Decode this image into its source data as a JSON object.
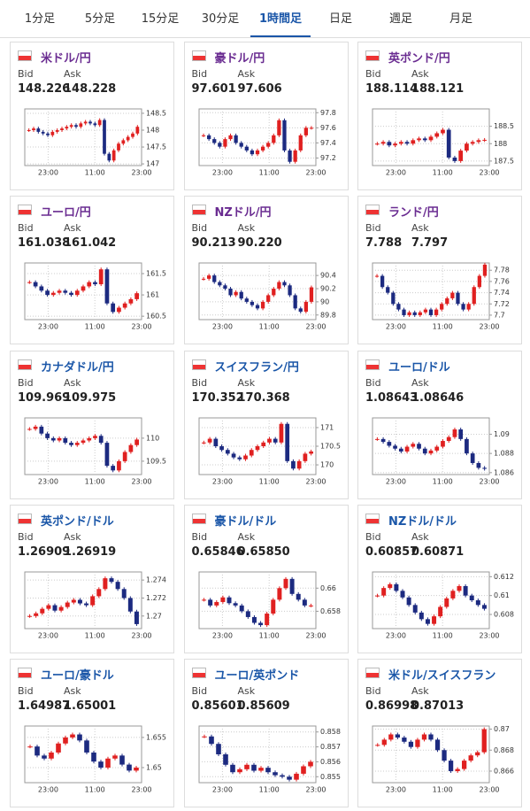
{
  "tabs": [
    "1分足",
    "5分足",
    "15分足",
    "30分足",
    "1時間足",
    "日足",
    "週足",
    "月足"
  ],
  "active_tab": 4,
  "labels": {
    "bid": "Bid",
    "ask": "Ask"
  },
  "cards": [
    {
      "name": "米ドル/円",
      "bid": "148.226",
      "ask": "148.228",
      "chart": {
        "type": "candlestick",
        "xticks": [
          "23:00",
          "11:00",
          "23:00"
        ],
        "ylim": [
          146.95,
          148.63
        ],
        "yticks": [
          148.5,
          148,
          147.5,
          147
        ],
        "closes": [
          148.0,
          148.05,
          147.95,
          147.9,
          147.85,
          147.95,
          148.0,
          148.05,
          148.1,
          148.15,
          148.1,
          148.2,
          148.25,
          148.2,
          148.15,
          148.3,
          147.3,
          147.1,
          147.4,
          147.6,
          147.7,
          147.8,
          147.9,
          148.1
        ]
      }
    },
    {
      "name": "豪ドル/円",
      "bid": "97.601",
      "ask": "97.606",
      "chart": {
        "type": "candlestick",
        "xticks": [
          "23:00",
          "11:00",
          "23:00"
        ],
        "ylim": [
          97.1,
          97.85
        ],
        "yticks": [
          97.8,
          97.6,
          97.4,
          97.2
        ],
        "closes": [
          97.5,
          97.45,
          97.4,
          97.35,
          97.45,
          97.5,
          97.4,
          97.35,
          97.3,
          97.25,
          97.3,
          97.35,
          97.4,
          97.5,
          97.7,
          97.3,
          97.15,
          97.3,
          97.5,
          97.6,
          97.6
        ]
      }
    },
    {
      "name": "英ポンド/円",
      "bid": "188.114",
      "ask": "188.121",
      "chart": {
        "type": "candlestick",
        "xticks": [
          "23:00",
          "11:00",
          "23:00"
        ],
        "ylim": [
          187.37,
          189.0
        ],
        "yticks": [
          188.5,
          188,
          187.5
        ],
        "closes": [
          188.0,
          188.05,
          187.95,
          188.0,
          188.05,
          188.0,
          188.1,
          188.15,
          188.1,
          188.2,
          188.3,
          188.4,
          187.6,
          187.5,
          187.8,
          188.0,
          188.05,
          188.1,
          188.11
        ]
      }
    },
    {
      "name": "ユーロ/円",
      "bid": "161.038",
      "ask": "161.042",
      "chart": {
        "type": "candlestick",
        "xticks": [
          "23:00",
          "11:00",
          "23:00"
        ],
        "ylim": [
          160.42,
          161.75
        ],
        "yticks": [
          161.5,
          161,
          160.5
        ],
        "closes": [
          161.3,
          161.2,
          161.1,
          161.0,
          161.05,
          161.1,
          161.05,
          161.0,
          161.1,
          161.2,
          161.3,
          161.25,
          161.6,
          160.8,
          160.6,
          160.7,
          160.8,
          160.9,
          161.04
        ]
      }
    },
    {
      "name": "NZドル/円",
      "bid": "90.213",
      "ask": "90.220",
      "chart": {
        "type": "candlestick",
        "xticks": [
          "23:00",
          "11:00",
          "23:00"
        ],
        "ylim": [
          89.73,
          90.59
        ],
        "yticks": [
          90.4,
          90.2,
          90,
          89.8
        ],
        "closes": [
          90.35,
          90.4,
          90.3,
          90.25,
          90.2,
          90.1,
          90.15,
          90.05,
          90.0,
          89.95,
          89.9,
          90.0,
          90.1,
          90.2,
          90.3,
          90.25,
          90.1,
          89.9,
          89.85,
          90.0,
          90.22
        ]
      }
    },
    {
      "name": "ランド/円",
      "bid": "7.788",
      "ask": "7.797",
      "chart": {
        "type": "candlestick",
        "xticks": [
          "23:00",
          "11:00",
          "23:00"
        ],
        "ylim": [
          7.692,
          7.793
        ],
        "yticks": [
          7.78,
          7.76,
          7.74,
          7.72,
          7.7
        ],
        "closes": [
          7.77,
          7.75,
          7.74,
          7.72,
          7.71,
          7.7,
          7.705,
          7.7,
          7.705,
          7.71,
          7.7,
          7.71,
          7.72,
          7.73,
          7.74,
          7.72,
          7.71,
          7.72,
          7.75,
          7.77,
          7.79
        ]
      }
    },
    {
      "name": "カナダドル/円",
      "bid": "109.969",
      "ask": "109.975",
      "chart": {
        "type": "candlestick",
        "xticks": [
          "23:00",
          "11:00",
          "23:00"
        ],
        "ylim": [
          109.21,
          110.44
        ],
        "yticks": [
          110,
          109.5
        ],
        "closes": [
          110.2,
          110.25,
          110.1,
          110.0,
          109.95,
          110.0,
          109.9,
          109.85,
          109.9,
          109.95,
          110.0,
          110.05,
          109.9,
          109.4,
          109.3,
          109.5,
          109.7,
          109.85,
          109.97
        ]
      }
    },
    {
      "name": "スイスフラン/円",
      "bid": "170.352",
      "ask": "170.368",
      "chart": {
        "type": "candlestick",
        "xticks": [
          "23:00",
          "11:00",
          "23:00"
        ],
        "ylim": [
          169.74,
          171.26
        ],
        "yticks": [
          171,
          170.5,
          170
        ],
        "closes": [
          170.6,
          170.7,
          170.5,
          170.4,
          170.3,
          170.2,
          170.15,
          170.25,
          170.4,
          170.5,
          170.6,
          170.7,
          170.6,
          171.1,
          170.1,
          169.9,
          170.1,
          170.3,
          170.36
        ]
      }
    },
    {
      "name": "ユーロ/ドル",
      "bid": "1.08643",
      "ask": "1.08646",
      "chart": {
        "type": "candlestick",
        "xticks": [
          "23:00",
          "11:00",
          "23:00"
        ],
        "ylim": [
          1.0858,
          1.0917
        ],
        "yticks": [
          1.09,
          1.088,
          1.086
        ],
        "closes": [
          1.0895,
          1.0892,
          1.0888,
          1.0885,
          1.0882,
          1.0887,
          1.089,
          1.0885,
          1.088,
          1.0883,
          1.0887,
          1.0893,
          1.0897,
          1.0905,
          1.0895,
          1.088,
          1.087,
          1.0865,
          1.0864
        ]
      }
    },
    {
      "name": "英ポンド/ドル",
      "bid": "1.26909",
      "ask": "1.26919",
      "chart": {
        "type": "candlestick",
        "xticks": [
          "23:00",
          "11:00",
          "23:00"
        ],
        "ylim": [
          1.2686,
          1.2749
        ],
        "yticks": [
          1.274,
          1.272,
          1.27
        ],
        "closes": [
          1.27,
          1.2703,
          1.2708,
          1.2712,
          1.2706,
          1.271,
          1.2715,
          1.2718,
          1.2714,
          1.2712,
          1.2722,
          1.273,
          1.2742,
          1.2738,
          1.273,
          1.272,
          1.2705,
          1.2691
        ]
      }
    },
    {
      "name": "豪ドル/ドル",
      "bid": "0.65846",
      "ask": "0.65850",
      "chart": {
        "type": "candlestick",
        "xticks": [
          "23:00",
          "11:00",
          "23:00"
        ],
        "ylim": [
          0.6565,
          0.6614
        ],
        "yticks": [
          0.66,
          0.658
        ],
        "closes": [
          0.659,
          0.6585,
          0.6588,
          0.6592,
          0.6587,
          0.6585,
          0.658,
          0.6575,
          0.657,
          0.6568,
          0.6578,
          0.659,
          0.66,
          0.6608,
          0.6595,
          0.659,
          0.6585,
          0.6585
        ]
      }
    },
    {
      "name": "NZドル/ドル",
      "bid": "0.60857",
      "ask": "0.60871",
      "chart": {
        "type": "candlestick",
        "xticks": [
          "23:00",
          "11:00",
          "23:00"
        ],
        "ylim": [
          0.6065,
          0.6125
        ],
        "yticks": [
          0.612,
          0.61,
          0.608
        ],
        "closes": [
          0.61,
          0.6108,
          0.6112,
          0.6105,
          0.6098,
          0.609,
          0.6082,
          0.6075,
          0.607,
          0.6078,
          0.6088,
          0.6097,
          0.6105,
          0.611,
          0.61,
          0.6095,
          0.609,
          0.6086
        ]
      }
    },
    {
      "name": "ユーロ/豪ドル",
      "bid": "1.64987",
      "ask": "1.65001",
      "chart": {
        "type": "candlestick",
        "xticks": [
          "23:00",
          "11:00",
          "23:00"
        ],
        "ylim": [
          1.6475,
          1.6569
        ],
        "yticks": [
          1.655,
          1.65
        ],
        "closes": [
          1.6535,
          1.652,
          1.6515,
          1.6525,
          1.654,
          1.655,
          1.6555,
          1.6545,
          1.6525,
          1.651,
          1.65,
          1.6515,
          1.652,
          1.6505,
          1.6495,
          1.65
        ]
      }
    },
    {
      "name": "ユーロ/英ポンド",
      "bid": "0.85601",
      "ask": "0.85609",
      "chart": {
        "type": "candlestick",
        "xticks": [
          "23:00",
          "11:00",
          "23:00"
        ],
        "ylim": [
          0.8546,
          0.8584
        ],
        "yticks": [
          0.858,
          0.857,
          0.856,
          0.855
        ],
        "closes": [
          0.8577,
          0.8572,
          0.8565,
          0.8558,
          0.8553,
          0.8555,
          0.8558,
          0.8554,
          0.8556,
          0.8553,
          0.8551,
          0.855,
          0.8548,
          0.8552,
          0.8557,
          0.856
        ]
      }
    },
    {
      "name": "米ドル/スイスフラン",
      "bid": "0.86998",
      "ask": "0.87013",
      "chart": {
        "type": "candlestick",
        "xticks": [
          "23:00",
          "11:00",
          "23:00"
        ],
        "ylim": [
          0.8649,
          0.8703
        ],
        "yticks": [
          0.87,
          0.868,
          0.866
        ],
        "closes": [
          0.8685,
          0.869,
          0.8695,
          0.8692,
          0.8688,
          0.8683,
          0.869,
          0.8695,
          0.869,
          0.868,
          0.867,
          0.866,
          0.8662,
          0.867,
          0.8675,
          0.8678,
          0.87
        ]
      }
    }
  ]
}
